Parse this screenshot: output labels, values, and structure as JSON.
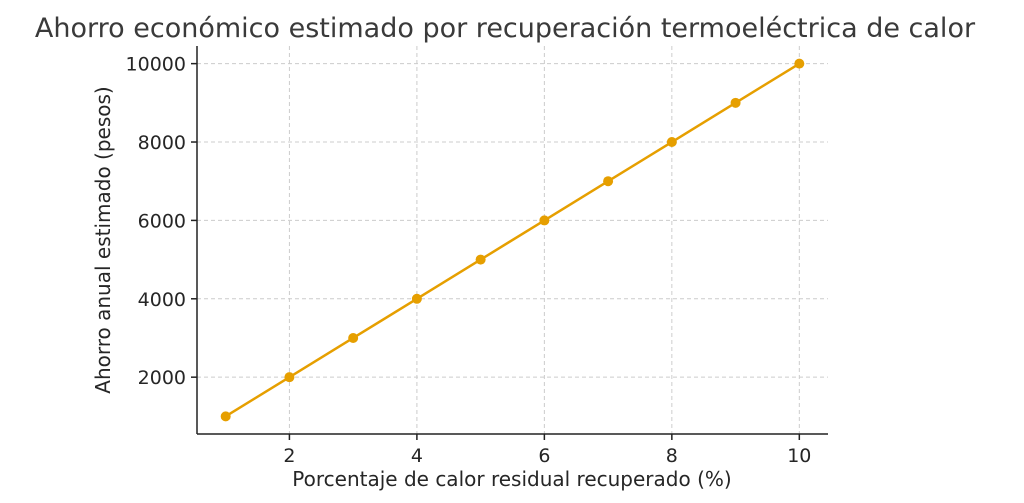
{
  "chart_data": {
    "type": "line",
    "title": "Ahorro económico estimado por recuperación termoeléctrica de calor",
    "xlabel": "Porcentaje de calor residual recuperado (%)",
    "ylabel": "Ahorro anual estimado (pesos)",
    "xlim": [
      0.55,
      10.45
    ],
    "ylim": [
      550,
      10450
    ],
    "xticks": [
      2,
      4,
      6,
      8,
      10
    ],
    "yticks": [
      2000,
      4000,
      6000,
      8000,
      10000
    ],
    "grid": true,
    "series": [
      {
        "color": "#e69f00",
        "marker": "circle",
        "x": [
          1,
          2,
          3,
          4,
          5,
          6,
          7,
          8,
          9,
          10
        ],
        "y": [
          1000,
          2000,
          3000,
          4000,
          5000,
          6000,
          7000,
          8000,
          9000,
          10000
        ]
      }
    ]
  }
}
